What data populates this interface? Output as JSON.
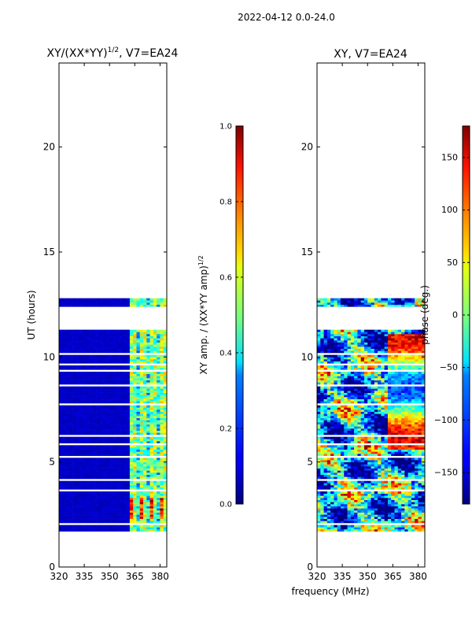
{
  "figure": {
    "suptitle": "2022-04-12 0.0-24.0",
    "xlabel_shared": "frequency (MHz)"
  },
  "chart_data": [
    {
      "type": "heatmap",
      "title": "XY/(XX*YY)^1/2, V7=EA24",
      "title_main": "XY/(XX*YY)",
      "title_sup": "1/2",
      "title_tail": ", V7=EA24",
      "xlabel": "",
      "ylabel": "UT (hours)",
      "xlim": [
        320,
        384
      ],
      "ylim": [
        0,
        24
      ],
      "xticks": [
        320,
        335,
        350,
        365,
        380
      ],
      "xtick_labels": [
        "320",
        "335",
        "350",
        "365",
        "380"
      ],
      "yticks": [
        0,
        5,
        10,
        15,
        20
      ],
      "ytick_labels": [
        "0",
        "5",
        "10",
        "15",
        "20"
      ],
      "data_time_range": [
        1.7,
        12.7
      ],
      "colorbar": {
        "label": "XY amp. / (XX*YY amp)^1/2",
        "label_main": "XY amp. / (XX*YY amp)",
        "label_sup": "1/2",
        "range": [
          0.0,
          1.0
        ],
        "ticks": [
          0.0,
          0.2,
          0.4,
          0.6,
          0.8,
          1.0
        ],
        "tick_labels": [
          "0.0",
          "0.2",
          "0.4",
          "0.6",
          "0.8",
          "1.0"
        ],
        "colormap": "jet"
      }
    },
    {
      "type": "heatmap",
      "title": "XY, V7=EA24",
      "xlabel": "frequency (MHz)",
      "ylabel": "",
      "xlim": [
        320,
        384
      ],
      "ylim": [
        0,
        24
      ],
      "xticks": [
        320,
        335,
        350,
        365,
        380
      ],
      "xtick_labels": [
        "320",
        "335",
        "350",
        "365",
        "380"
      ],
      "yticks": [
        0,
        5,
        10,
        15,
        20
      ],
      "ytick_labels": [
        "0",
        "5",
        "10",
        "15",
        "20"
      ],
      "data_time_range": [
        1.7,
        12.7
      ],
      "colorbar": {
        "label": "phase (deg.)",
        "range": [
          -180,
          180
        ],
        "ticks": [
          -150,
          -100,
          -50,
          0,
          50,
          100,
          150
        ],
        "tick_labels": [
          "−150",
          "−100",
          "−50",
          "0",
          "50",
          "100",
          "150"
        ],
        "colormap": "jet"
      }
    }
  ]
}
